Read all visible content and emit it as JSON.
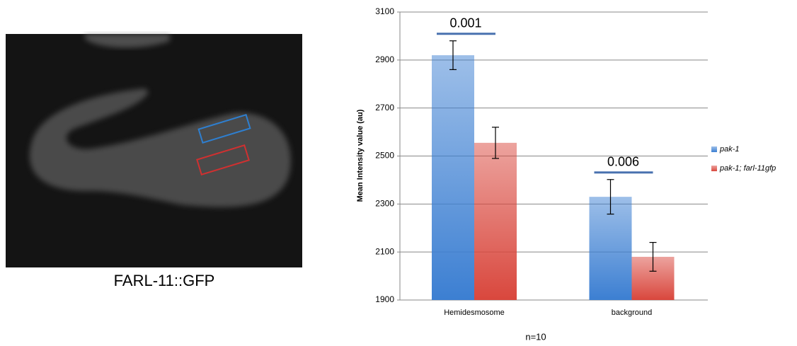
{
  "image": {
    "caption": "FARL-11::GFP"
  },
  "chart_data": {
    "type": "bar",
    "y_label": "Mean Intensity value (au)",
    "note": "n=10",
    "categories": [
      "Hemidesmosome",
      "background"
    ],
    "series": [
      {
        "name": "pak-1",
        "color": "#3c7fd2",
        "values": [
          2920,
          2330
        ],
        "errors": [
          60,
          72
        ]
      },
      {
        "name": "pak-1; farl-11gfp",
        "color": "#d9473d",
        "values": [
          2555,
          2080
        ],
        "errors": [
          65,
          60
        ]
      }
    ],
    "annotations": [
      "0.001",
      "0.006"
    ],
    "ylim": [
      1900,
      3100
    ],
    "yticks": [
      1900,
      2100,
      2300,
      2500,
      2700,
      2900,
      3100
    ],
    "grid": true,
    "legend": "right"
  }
}
